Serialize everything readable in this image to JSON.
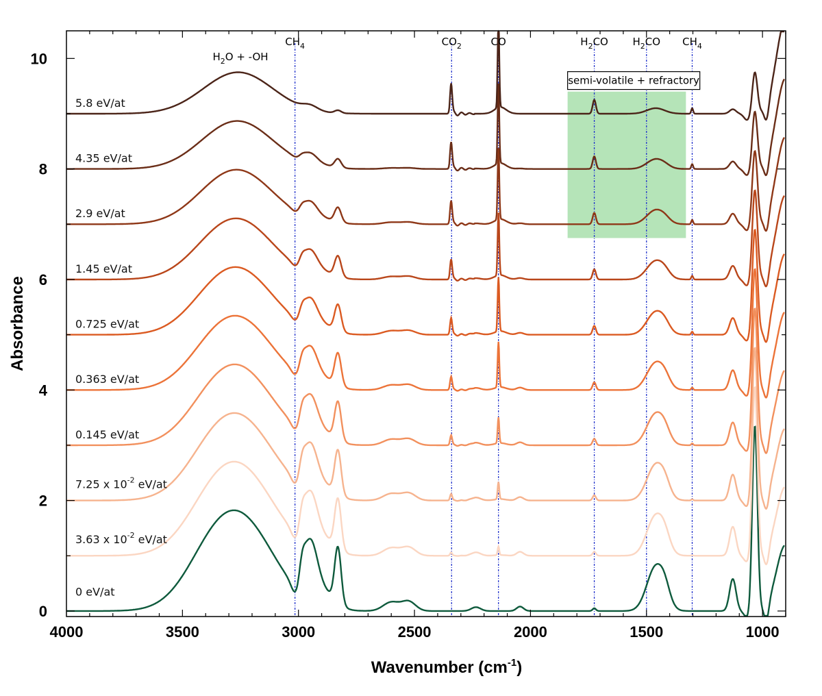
{
  "chart_data": {
    "type": "line",
    "xlabel_main": "Wavenumber (cm",
    "xlabel_sup": "-1",
    "xlabel_close": ")",
    "ylabel": "Absorbance",
    "xlim": [
      4000,
      900
    ],
    "ylim": [
      -0.1,
      10.5
    ],
    "x_reversed": true,
    "grid": false,
    "x_ticks": [
      4000,
      3500,
      3000,
      2500,
      2000,
      1500,
      1000
    ],
    "x_tick_labels": [
      "4000",
      "3500",
      "3000",
      "2500",
      "2000",
      "1500",
      "1000"
    ],
    "y_ticks": [
      0,
      2,
      4,
      6,
      8,
      10
    ],
    "y_tick_labels": [
      "0",
      "2",
      "4",
      "6",
      "8",
      "10"
    ],
    "colors": {
      "axis": "#000000",
      "reference_line": "#2233cc",
      "highlight_band": "#b5e4b8",
      "annotation_box_border": "#000000"
    },
    "reference_lines": [
      {
        "x": 3015,
        "molecule": "CH",
        "subscript": "4"
      },
      {
        "x": 2340,
        "molecule": "CO",
        "subscript": "2"
      },
      {
        "x": 2138,
        "molecule": "CO",
        "subscript": ""
      },
      {
        "x": 1725,
        "molecule": "H",
        "subscript": "2",
        "molecule_suffix": "CO"
      },
      {
        "x": 1500,
        "molecule": "H",
        "subscript": "2",
        "molecule_suffix": "CO"
      },
      {
        "x": 1303,
        "molecule": "CH",
        "subscript": "4"
      }
    ],
    "water_label": {
      "prefix": "H",
      "subscript": "2",
      "suffix": "O + -OH",
      "x": 3250
    },
    "highlight_band": {
      "x_from": 1840,
      "x_to": 1330,
      "y_from": 6.75,
      "y_to": 9.4
    },
    "annotation_box": {
      "text": "semi-volatile + refractory",
      "x_from": 1840,
      "x_to": 1270,
      "y_center": 9.6
    },
    "series": [
      {
        "name": "0 eV/at",
        "offset": 0,
        "color": "#0e5a3c",
        "label_y": 0.35
      },
      {
        "name_prefix": "3.63 x 10",
        "name_sup": "-2",
        "name_suffix": " eV/at",
        "offset": 1,
        "color": "#fbd6c2",
        "label_y": 1.3
      },
      {
        "name_prefix": "7.25 x 10",
        "name_sup": "-2",
        "name_suffix": " eV/at",
        "offset": 2,
        "color": "#f6b38e",
        "label_y": 2.3
      },
      {
        "name": "0.145 eV/at",
        "offset": 3,
        "color": "#f2905d",
        "label_y": 3.2
      },
      {
        "name": "0.363 eV/at",
        "offset": 4,
        "color": "#ec7338",
        "label_y": 4.2
      },
      {
        "name": "0.725 eV/at",
        "offset": 5,
        "color": "#db5a21",
        "label_y": 5.2
      },
      {
        "name": "1.45 eV/at",
        "offset": 6,
        "color": "#b9461a",
        "label_y": 6.2
      },
      {
        "name": "2.9 eV/at",
        "offset": 7,
        "color": "#8e3717",
        "label_y": 7.2
      },
      {
        "name": "4.35 eV/at",
        "offset": 8,
        "color": "#6a2d17",
        "label_y": 8.2
      },
      {
        "name": "5.8 eV/at",
        "offset": 9,
        "color": "#4b2418",
        "label_y": 9.2
      }
    ]
  }
}
